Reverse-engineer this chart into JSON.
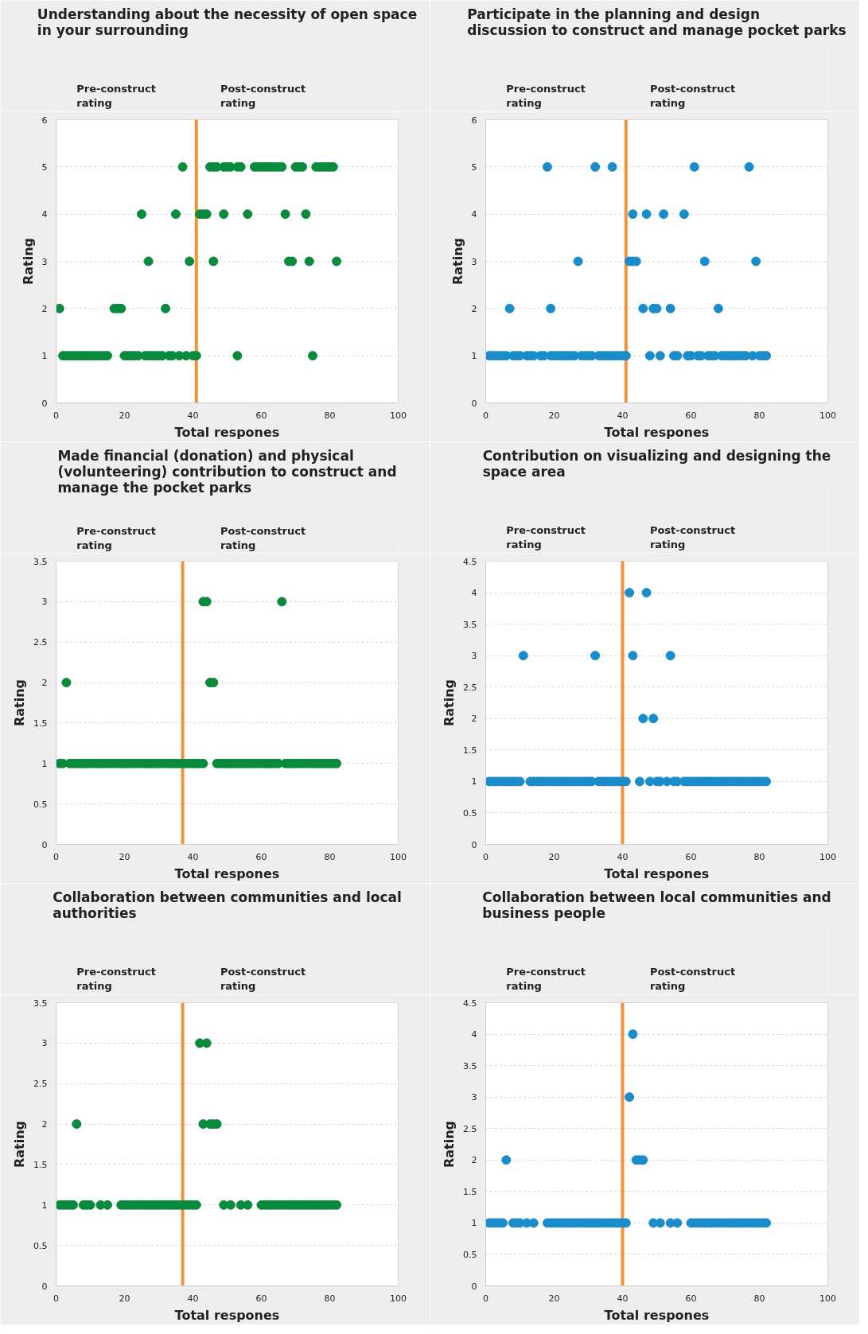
{
  "chart_data": [
    {
      "type": "scatter",
      "title": "Understanding about the necessity of open space in your surrounding",
      "xlabel": "Total respones",
      "ylabel": "Rating",
      "annotations": [
        "Pre-construct rating",
        "Post-construct rating"
      ],
      "xlim": [
        0,
        100
      ],
      "xticks": [
        0,
        20,
        40,
        60,
        80,
        100
      ],
      "ylim": [
        0,
        6
      ],
      "yticks": [
        0,
        1,
        2,
        3,
        4,
        5,
        6
      ],
      "grid": "y",
      "marker": "circle",
      "ref_lines": [
        {
          "axis": "x",
          "value": 41,
          "color": "#f39237"
        }
      ],
      "series": [
        {
          "color": "#0a8a3c",
          "x": [
            37,
            45,
            46,
            47,
            49,
            50,
            51,
            53,
            54,
            58,
            59,
            60,
            61,
            62,
            63,
            64,
            65,
            66,
            70,
            71,
            72,
            76,
            77,
            78,
            79,
            80,
            81,
            25,
            35,
            42,
            43,
            44,
            49,
            56,
            67,
            73,
            27,
            39,
            46,
            68,
            69,
            74,
            82,
            1,
            17,
            18,
            19,
            32,
            2,
            3,
            4,
            5,
            6,
            7,
            8,
            9,
            10,
            11,
            12,
            13,
            14,
            15,
            20,
            21,
            22,
            23,
            24,
            26,
            27,
            28,
            29,
            30,
            31,
            33,
            34,
            36,
            38,
            40,
            41,
            53,
            75
          ],
          "values": [
            5,
            5,
            5,
            5,
            5,
            5,
            5,
            5,
            5,
            5,
            5,
            5,
            5,
            5,
            5,
            5,
            5,
            5,
            5,
            5,
            5,
            5,
            5,
            5,
            5,
            5,
            5,
            4,
            4,
            4,
            4,
            4,
            4,
            4,
            4,
            4,
            3,
            3,
            3,
            3,
            3,
            3,
            3,
            2,
            2,
            2,
            2,
            2,
            1,
            1,
            1,
            1,
            1,
            1,
            1,
            1,
            1,
            1,
            1,
            1,
            1,
            1,
            1,
            1,
            1,
            1,
            1,
            1,
            1,
            1,
            1,
            1,
            1,
            1,
            1,
            1,
            1,
            1,
            1,
            1,
            1
          ]
        }
      ]
    },
    {
      "type": "scatter",
      "title": "Participate in the planning and design discussion to construct and manage pocket parks",
      "xlabel": "Total respones",
      "ylabel": "Rating",
      "annotations": [
        "Pre-construct rating",
        "Post-construct rating"
      ],
      "xlim": [
        0,
        100
      ],
      "xticks": [
        0,
        20,
        40,
        60,
        80,
        100
      ],
      "ylim": [
        0,
        6
      ],
      "yticks": [
        0,
        1,
        2,
        3,
        4,
        5,
        6
      ],
      "grid": "y",
      "marker": "circle",
      "ref_lines": [
        {
          "axis": "x",
          "value": 41,
          "color": "#f39237"
        }
      ],
      "series": [
        {
          "color": "#1a8cc9",
          "x": [
            18,
            32,
            37,
            61,
            77,
            43,
            47,
            52,
            58,
            27,
            42,
            43,
            44,
            64,
            79,
            7,
            19,
            46,
            49,
            50,
            54,
            68,
            1,
            2,
            3,
            4,
            5,
            6,
            8,
            9,
            10,
            12,
            13,
            14,
            16,
            17,
            19,
            20,
            21,
            22,
            23,
            24,
            25,
            26,
            28,
            29,
            30,
            31,
            33,
            34,
            35,
            36,
            37,
            38,
            39,
            40,
            41,
            48,
            51,
            55,
            56,
            59,
            60,
            62,
            63,
            65,
            66,
            67,
            69,
            70,
            71,
            72,
            73,
            74,
            75,
            76,
            78,
            80,
            81,
            82
          ],
          "values": [
            5,
            5,
            5,
            5,
            5,
            4,
            4,
            4,
            4,
            3,
            3,
            3,
            3,
            3,
            3,
            2,
            2,
            2,
            2,
            2,
            2,
            2,
            1,
            1,
            1,
            1,
            1,
            1,
            1,
            1,
            1,
            1,
            1,
            1,
            1,
            1,
            1,
            1,
            1,
            1,
            1,
            1,
            1,
            1,
            1,
            1,
            1,
            1,
            1,
            1,
            1,
            1,
            1,
            1,
            1,
            1,
            1,
            1,
            1,
            1,
            1,
            1,
            1,
            1,
            1,
            1,
            1,
            1,
            1,
            1,
            1,
            1,
            1,
            1,
            1,
            1,
            1,
            1,
            1,
            1
          ]
        }
      ]
    },
    {
      "type": "scatter",
      "title": "Made financial (donation) and physical (volunteering) contribution to construct and manage the pocket parks",
      "xlabel": "Total respones",
      "ylabel": "Rating",
      "annotations": [
        "Pre-construct rating",
        "Post-construct rating"
      ],
      "xlim": [
        0,
        100
      ],
      "xticks": [
        0,
        20,
        40,
        60,
        80,
        100
      ],
      "ylim": [
        0,
        3.5
      ],
      "yticks": [
        0,
        0.5,
        1,
        1.5,
        2,
        2.5,
        3,
        3.5
      ],
      "grid": "y",
      "marker": "circle",
      "ref_lines": [
        {
          "axis": "x",
          "value": 37,
          "color": "#f39237"
        }
      ],
      "series": [
        {
          "color": "#0a8a3c",
          "x": [
            43,
            44,
            66,
            3,
            45,
            46,
            1,
            2,
            4,
            5,
            6,
            7,
            8,
            9,
            10,
            11,
            12,
            13,
            14,
            15,
            16,
            17,
            18,
            19,
            20,
            21,
            22,
            23,
            24,
            25,
            26,
            27,
            28,
            29,
            30,
            31,
            32,
            33,
            34,
            35,
            36,
            37,
            38,
            39,
            40,
            41,
            42,
            43,
            47,
            48,
            49,
            50,
            51,
            52,
            53,
            54,
            55,
            56,
            57,
            58,
            59,
            60,
            61,
            62,
            63,
            64,
            65,
            67,
            68,
            69,
            70,
            71,
            72,
            73,
            74,
            75,
            76,
            77,
            78,
            79,
            80,
            81,
            82
          ],
          "values": [
            3,
            3,
            3,
            2,
            2,
            2,
            1,
            1,
            1,
            1,
            1,
            1,
            1,
            1,
            1,
            1,
            1,
            1,
            1,
            1,
            1,
            1,
            1,
            1,
            1,
            1,
            1,
            1,
            1,
            1,
            1,
            1,
            1,
            1,
            1,
            1,
            1,
            1,
            1,
            1,
            1,
            1,
            1,
            1,
            1,
            1,
            1,
            1,
            1,
            1,
            1,
            1,
            1,
            1,
            1,
            1,
            1,
            1,
            1,
            1,
            1,
            1,
            1,
            1,
            1,
            1,
            1,
            1,
            1,
            1,
            1,
            1,
            1,
            1,
            1,
            1,
            1,
            1,
            1,
            1,
            1,
            1,
            1
          ]
        }
      ]
    },
    {
      "type": "scatter",
      "title": "Contribution on visualizing and designing the space area",
      "xlabel": "Total respones",
      "ylabel": "Rating",
      "annotations": [
        "Pre-construct rating",
        "Post-construct rating"
      ],
      "xlim": [
        0,
        100
      ],
      "xticks": [
        0,
        20,
        40,
        60,
        80,
        100
      ],
      "ylim": [
        0,
        4.5
      ],
      "yticks": [
        0,
        0.5,
        1,
        1.5,
        2,
        2.5,
        3,
        3.5,
        4,
        4.5
      ],
      "grid": "y",
      "marker": "circle",
      "ref_lines": [
        {
          "axis": "x",
          "value": 40,
          "color": "#f39237"
        }
      ],
      "series": [
        {
          "color": "#1a8cc9",
          "x": [
            42,
            47,
            11,
            32,
            43,
            54,
            46,
            49,
            1,
            2,
            3,
            4,
            5,
            6,
            7,
            8,
            9,
            10,
            13,
            14,
            15,
            16,
            17,
            18,
            19,
            20,
            21,
            22,
            23,
            24,
            25,
            26,
            27,
            28,
            29,
            30,
            31,
            33,
            34,
            35,
            36,
            37,
            38,
            39,
            40,
            41,
            45,
            48,
            50,
            51,
            53,
            55,
            56,
            58,
            59,
            60,
            61,
            62,
            63,
            64,
            65,
            66,
            67,
            68,
            69,
            70,
            71,
            72,
            73,
            74,
            75,
            76,
            77,
            78,
            79,
            80,
            81,
            82
          ],
          "values": [
            4,
            4,
            3,
            3,
            3,
            3,
            2,
            2,
            1,
            1,
            1,
            1,
            1,
            1,
            1,
            1,
            1,
            1,
            1,
            1,
            1,
            1,
            1,
            1,
            1,
            1,
            1,
            1,
            1,
            1,
            1,
            1,
            1,
            1,
            1,
            1,
            1,
            1,
            1,
            1,
            1,
            1,
            1,
            1,
            1,
            1,
            1,
            1,
            1,
            1,
            1,
            1,
            1,
            1,
            1,
            1,
            1,
            1,
            1,
            1,
            1,
            1,
            1,
            1,
            1,
            1,
            1,
            1,
            1,
            1,
            1,
            1,
            1,
            1,
            1,
            1,
            1,
            1
          ]
        }
      ]
    },
    {
      "type": "scatter",
      "title": "Collaboration between communities and local authorities",
      "xlabel": "Total respones",
      "ylabel": "Rating",
      "annotations": [
        "Pre-construct rating",
        "Post-construct rating"
      ],
      "xlim": [
        0,
        100
      ],
      "xticks": [
        0,
        20,
        40,
        60,
        80,
        100
      ],
      "ylim": [
        0,
        3.5
      ],
      "yticks": [
        0,
        0.5,
        1,
        1.5,
        2,
        2.5,
        3,
        3.5
      ],
      "grid": "y",
      "marker": "circle",
      "ref_lines": [
        {
          "axis": "x",
          "value": 37,
          "color": "#f39237"
        }
      ],
      "series": [
        {
          "color": "#0a8a3c",
          "x": [
            42,
            44,
            6,
            43,
            45,
            46,
            47,
            1,
            2,
            3,
            4,
            5,
            8,
            9,
            10,
            13,
            15,
            19,
            20,
            21,
            22,
            23,
            24,
            25,
            26,
            27,
            28,
            29,
            30,
            31,
            32,
            33,
            34,
            35,
            36,
            37,
            38,
            39,
            40,
            41,
            49,
            51,
            54,
            56,
            60,
            61,
            62,
            63,
            64,
            65,
            66,
            67,
            68,
            69,
            70,
            71,
            72,
            73,
            74,
            75,
            76,
            77,
            78,
            79,
            80,
            81,
            82
          ],
          "values": [
            3,
            3,
            2,
            2,
            2,
            2,
            2,
            1,
            1,
            1,
            1,
            1,
            1,
            1,
            1,
            1,
            1,
            1,
            1,
            1,
            1,
            1,
            1,
            1,
            1,
            1,
            1,
            1,
            1,
            1,
            1,
            1,
            1,
            1,
            1,
            1,
            1,
            1,
            1,
            1,
            1,
            1,
            1,
            1,
            1,
            1,
            1,
            1,
            1,
            1,
            1,
            1,
            1,
            1,
            1,
            1,
            1,
            1,
            1,
            1,
            1,
            1,
            1,
            1,
            1,
            1,
            1
          ]
        }
      ]
    },
    {
      "type": "scatter",
      "title": "Collaboration between local communities and business people",
      "xlabel": "Total respones",
      "ylabel": "Rating",
      "annotations": [
        "Pre-construct rating",
        "Post-construct rating"
      ],
      "xlim": [
        0,
        100
      ],
      "xticks": [
        0,
        20,
        40,
        60,
        80,
        100
      ],
      "ylim": [
        0,
        4.5
      ],
      "yticks": [
        0,
        0.5,
        1,
        1.5,
        2,
        2.5,
        3,
        3.5,
        4,
        4.5
      ],
      "grid": "y",
      "marker": "circle",
      "ref_lines": [
        {
          "axis": "x",
          "value": 40,
          "color": "#f39237"
        }
      ],
      "series": [
        {
          "color": "#1a8cc9",
          "x": [
            43,
            42,
            6,
            44,
            45,
            46,
            1,
            2,
            3,
            4,
            5,
            8,
            9,
            10,
            12,
            14,
            18,
            19,
            20,
            21,
            22,
            23,
            24,
            25,
            26,
            27,
            28,
            29,
            30,
            31,
            32,
            33,
            34,
            35,
            36,
            37,
            38,
            39,
            40,
            41,
            49,
            51,
            54,
            56,
            60,
            61,
            62,
            63,
            64,
            65,
            66,
            67,
            68,
            69,
            70,
            71,
            72,
            73,
            74,
            75,
            76,
            77,
            78,
            79,
            80,
            81,
            82
          ],
          "values": [
            4,
            3,
            2,
            2,
            2,
            2,
            1,
            1,
            1,
            1,
            1,
            1,
            1,
            1,
            1,
            1,
            1,
            1,
            1,
            1,
            1,
            1,
            1,
            1,
            1,
            1,
            1,
            1,
            1,
            1,
            1,
            1,
            1,
            1,
            1,
            1,
            1,
            1,
            1,
            1,
            1,
            1,
            1,
            1,
            1,
            1,
            1,
            1,
            1,
            1,
            1,
            1,
            1,
            1,
            1,
            1,
            1,
            1,
            1,
            1,
            1,
            1,
            1,
            1,
            1,
            1,
            1
          ]
        }
      ]
    }
  ]
}
